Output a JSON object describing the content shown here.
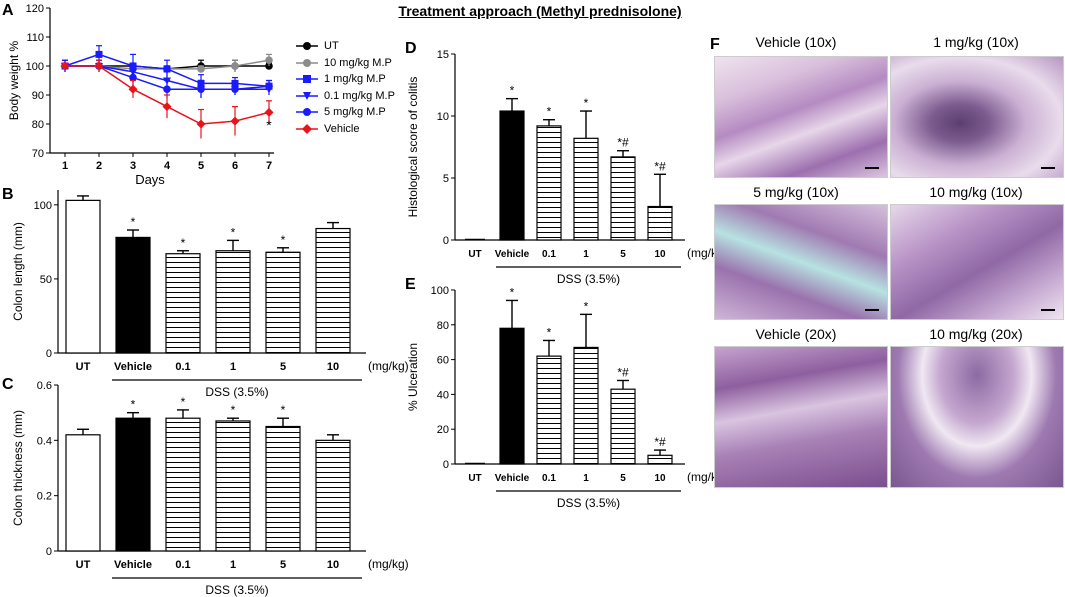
{
  "figure_title": "Treatment approach (Methyl prednisolone)",
  "panel_labels": {
    "A": "A",
    "B": "B",
    "C": "C",
    "D": "D",
    "E": "E",
    "F": "F"
  },
  "colors": {
    "UT": "#000000",
    "10mg": "#8c8c8c",
    "1mg": "#1a1aff",
    "0.1mg": "#1a1aff",
    "5mg": "#1a1aff",
    "Vehicle": "#e8141a"
  },
  "chart_data": [
    {
      "id": "A",
      "type": "line",
      "title": "",
      "xlabel": "Days",
      "ylabel": "Body weight %",
      "x": [
        1,
        2,
        3,
        4,
        5,
        6,
        7
      ],
      "ylim": [
        70,
        120
      ],
      "yticks": [
        70,
        80,
        90,
        100,
        110,
        120
      ],
      "legend_position": "right",
      "series": [
        {
          "name": "UT",
          "marker": "circle",
          "color": "#000000",
          "values": [
            100,
            100,
            100,
            99,
            100,
            100,
            100
          ],
          "err": [
            1,
            1,
            1,
            1,
            2,
            2,
            1
          ]
        },
        {
          "name": "10 mg/kg M.P",
          "marker": "circle",
          "color": "#8c8c8c",
          "values": [
            100,
            100,
            99,
            99,
            99,
            100,
            102
          ],
          "err": [
            1,
            1,
            2,
            1,
            1,
            2,
            2
          ]
        },
        {
          "name": "1 mg/kg M.P",
          "marker": "square",
          "color": "#1a1aff",
          "values": [
            100,
            104,
            100,
            99,
            94,
            94,
            93
          ],
          "err": [
            2,
            3,
            4,
            3,
            3,
            2,
            2
          ]
        },
        {
          "name": "0.1 mg/kg M.P",
          "marker": "triangle-down",
          "color": "#1a1aff",
          "values": [
            100,
            100,
            98,
            95,
            92,
            92,
            92
          ],
          "err": [
            2,
            2,
            3,
            3,
            3,
            2,
            2
          ]
        },
        {
          "name": "5 mg/kg M.P",
          "marker": "circle",
          "color": "#1a1aff",
          "values": [
            100,
            100,
            96,
            92,
            92,
            92,
            93
          ],
          "err": [
            2,
            2,
            3,
            3,
            3,
            2,
            2
          ]
        },
        {
          "name": "Vehicle",
          "marker": "diamond",
          "color": "#e8141a",
          "values": [
            100,
            100,
            92,
            86,
            80,
            81,
            84
          ],
          "err": [
            1,
            2,
            3,
            4,
            5,
            5,
            4
          ]
        }
      ],
      "annotations": [
        {
          "x": 7,
          "y": 78,
          "text": "*"
        }
      ]
    },
    {
      "id": "B",
      "type": "bar",
      "ylabel": "Colon length (mm)",
      "categories": [
        "UT",
        "Vehicle",
        "0.1",
        "1",
        "5",
        "10"
      ],
      "unit_label": "(mg/kg)",
      "group_label": "DSS (3.5%)",
      "values": [
        103,
        78,
        67,
        69,
        68,
        84
      ],
      "err": [
        3,
        5,
        2,
        7,
        3,
        4
      ],
      "stars": [
        "",
        "*",
        "*",
        "*",
        "*",
        ""
      ],
      "ylim": [
        0,
        110
      ],
      "yticks": [
        0,
        50,
        100
      ],
      "fills": [
        "white",
        "black",
        "hatch",
        "hatch",
        "hatch",
        "hatch"
      ]
    },
    {
      "id": "C",
      "type": "bar",
      "ylabel": "Colon thickness (mm)",
      "categories": [
        "UT",
        "Vehicle",
        "0.1",
        "1",
        "5",
        "10"
      ],
      "unit_label": "(mg/kg)",
      "group_label": "DSS (3.5%)",
      "values": [
        0.42,
        0.48,
        0.48,
        0.47,
        0.45,
        0.4
      ],
      "err": [
        0.02,
        0.02,
        0.03,
        0.01,
        0.03,
        0.02
      ],
      "stars": [
        "",
        "*",
        "*",
        "*",
        "*",
        ""
      ],
      "ylim": [
        0,
        0.6
      ],
      "yticks": [
        0,
        0.2,
        0.4,
        0.6
      ],
      "fills": [
        "white",
        "black",
        "hatch",
        "hatch",
        "hatch",
        "hatch"
      ]
    },
    {
      "id": "D",
      "type": "bar",
      "ylabel": "Histological score of colitis",
      "categories": [
        "UT",
        "Vehicle",
        "0.1",
        "1",
        "5",
        "10"
      ],
      "unit_label": "(mg/kg)",
      "group_label": "DSS (3.5%)",
      "values": [
        0,
        10.4,
        9.2,
        8.2,
        6.7,
        2.7
      ],
      "err": [
        0,
        1.0,
        0.5,
        2.2,
        0.5,
        2.6
      ],
      "stars": [
        "",
        "*",
        "*",
        "*",
        "*#",
        "*#"
      ],
      "ylim": [
        0,
        15
      ],
      "yticks": [
        0,
        5,
        10,
        15
      ],
      "fills": [
        "white",
        "black",
        "hatch",
        "hatch",
        "hatch",
        "hatch"
      ]
    },
    {
      "id": "E",
      "type": "bar",
      "ylabel": "% Ulceration",
      "categories": [
        "UT",
        "Vehicle",
        "0.1",
        "1",
        "5",
        "10"
      ],
      "unit_label": "(mg/kg)",
      "group_label": "DSS (3.5%)",
      "values": [
        0,
        78,
        62,
        67,
        43,
        5
      ],
      "err": [
        0,
        16,
        9,
        19,
        5,
        3
      ],
      "stars": [
        "",
        "*",
        "*",
        "*",
        "*#",
        "*#"
      ],
      "ylim": [
        0,
        100
      ],
      "yticks": [
        0,
        20,
        40,
        60,
        80,
        100
      ],
      "fills": [
        "white",
        "black",
        "hatch",
        "hatch",
        "hatch",
        "hatch"
      ]
    }
  ],
  "panel_F": {
    "images": [
      {
        "label": "Vehicle  (10x)"
      },
      {
        "label": "1 mg/kg  (10x)"
      },
      {
        "label": "5 mg/kg  (10x)"
      },
      {
        "label": "10 mg/kg  (10x)"
      },
      {
        "label": "Vehicle  (20x)"
      },
      {
        "label": "10 mg/kg  (20x)"
      }
    ]
  }
}
